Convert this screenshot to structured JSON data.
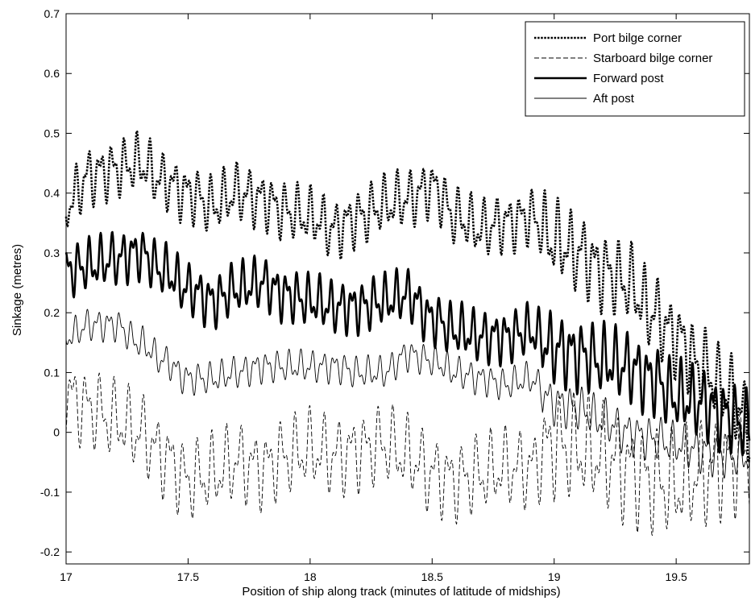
{
  "chart_data": {
    "type": "line",
    "title": "",
    "xlabel": "Position of ship along track (minutes of latitude of midships)",
    "ylabel": "Sinkage (metres)",
    "xlim": [
      17,
      19.8
    ],
    "ylim": [
      -0.22,
      0.7
    ],
    "xticks": [
      "17",
      "17.5",
      "18",
      "18.5",
      "19",
      "19.5"
    ],
    "yticks": [
      "-0.2",
      "-0.1",
      "0",
      "0.1",
      "0.2",
      "0.3",
      "0.4",
      "0.5",
      "0.6",
      "0.7"
    ],
    "grid": false,
    "legend_position": "top-right",
    "series": [
      {
        "name": "Port bilge corner",
        "line_style": "dotted",
        "color": "#000000",
        "x": [
          17.0,
          17.1,
          17.2,
          17.3,
          17.4,
          17.5,
          17.6,
          17.7,
          17.8,
          17.9,
          18.0,
          18.1,
          18.2,
          18.3,
          18.4,
          18.5,
          18.6,
          18.7,
          18.8,
          18.9,
          19.0,
          19.1,
          19.2,
          19.3,
          19.4,
          19.5,
          19.6,
          19.7,
          19.8
        ],
        "y": [
          0.38,
          0.43,
          0.44,
          0.45,
          0.42,
          0.4,
          0.38,
          0.4,
          0.39,
          0.37,
          0.36,
          0.34,
          0.36,
          0.38,
          0.39,
          0.41,
          0.36,
          0.34,
          0.35,
          0.36,
          0.32,
          0.3,
          0.27,
          0.25,
          0.2,
          0.16,
          0.11,
          0.07,
          0.02
        ]
      },
      {
        "name": "Starboard bilge corner",
        "line_style": "dashed",
        "color": "#000000",
        "x": [
          17.0,
          17.1,
          17.2,
          17.3,
          17.4,
          17.5,
          17.6,
          17.7,
          17.8,
          17.9,
          18.0,
          18.1,
          18.2,
          18.3,
          18.4,
          18.5,
          18.6,
          18.7,
          18.8,
          18.9,
          19.0,
          19.1,
          19.2,
          19.3,
          19.4,
          19.5,
          19.6,
          19.7,
          19.8
        ],
        "y": [
          0.06,
          0.04,
          0.02,
          0.0,
          -0.04,
          -0.08,
          -0.07,
          -0.05,
          -0.06,
          -0.04,
          -0.03,
          -0.04,
          -0.03,
          -0.02,
          -0.04,
          -0.07,
          -0.08,
          -0.07,
          -0.06,
          -0.06,
          -0.02,
          -0.03,
          -0.04,
          -0.06,
          -0.08,
          -0.09,
          -0.07,
          -0.05,
          -0.04
        ]
      },
      {
        "name": "Forward post",
        "line_style": "solid-thick",
        "color": "#000000",
        "x": [
          17.0,
          17.1,
          17.2,
          17.3,
          17.4,
          17.5,
          17.6,
          17.7,
          17.8,
          17.9,
          18.0,
          18.1,
          18.2,
          18.3,
          18.4,
          18.5,
          18.6,
          18.7,
          18.8,
          18.9,
          19.0,
          19.1,
          19.2,
          19.3,
          19.4,
          19.5,
          19.6,
          19.7,
          19.8
        ],
        "y": [
          0.27,
          0.28,
          0.29,
          0.3,
          0.27,
          0.24,
          0.22,
          0.24,
          0.25,
          0.23,
          0.22,
          0.21,
          0.21,
          0.22,
          0.23,
          0.19,
          0.17,
          0.16,
          0.16,
          0.17,
          0.14,
          0.13,
          0.12,
          0.11,
          0.09,
          0.06,
          0.05,
          0.03,
          0.01
        ]
      },
      {
        "name": "Aft post",
        "line_style": "solid-thin",
        "color": "#000000",
        "x": [
          17.0,
          17.1,
          17.2,
          17.3,
          17.4,
          17.5,
          17.6,
          17.7,
          17.8,
          17.9,
          18.0,
          18.1,
          18.2,
          18.3,
          18.4,
          18.5,
          18.6,
          18.7,
          18.8,
          18.9,
          19.0,
          19.1,
          19.2,
          19.3,
          19.4,
          19.5,
          19.6,
          19.7,
          19.8
        ],
        "y": [
          0.16,
          0.18,
          0.18,
          0.15,
          0.12,
          0.09,
          0.09,
          0.1,
          0.11,
          0.11,
          0.11,
          0.11,
          0.1,
          0.1,
          0.13,
          0.12,
          0.1,
          0.09,
          0.08,
          0.09,
          0.05,
          0.04,
          0.02,
          0.0,
          -0.01,
          -0.02,
          -0.03,
          -0.04,
          -0.04
        ]
      }
    ]
  }
}
